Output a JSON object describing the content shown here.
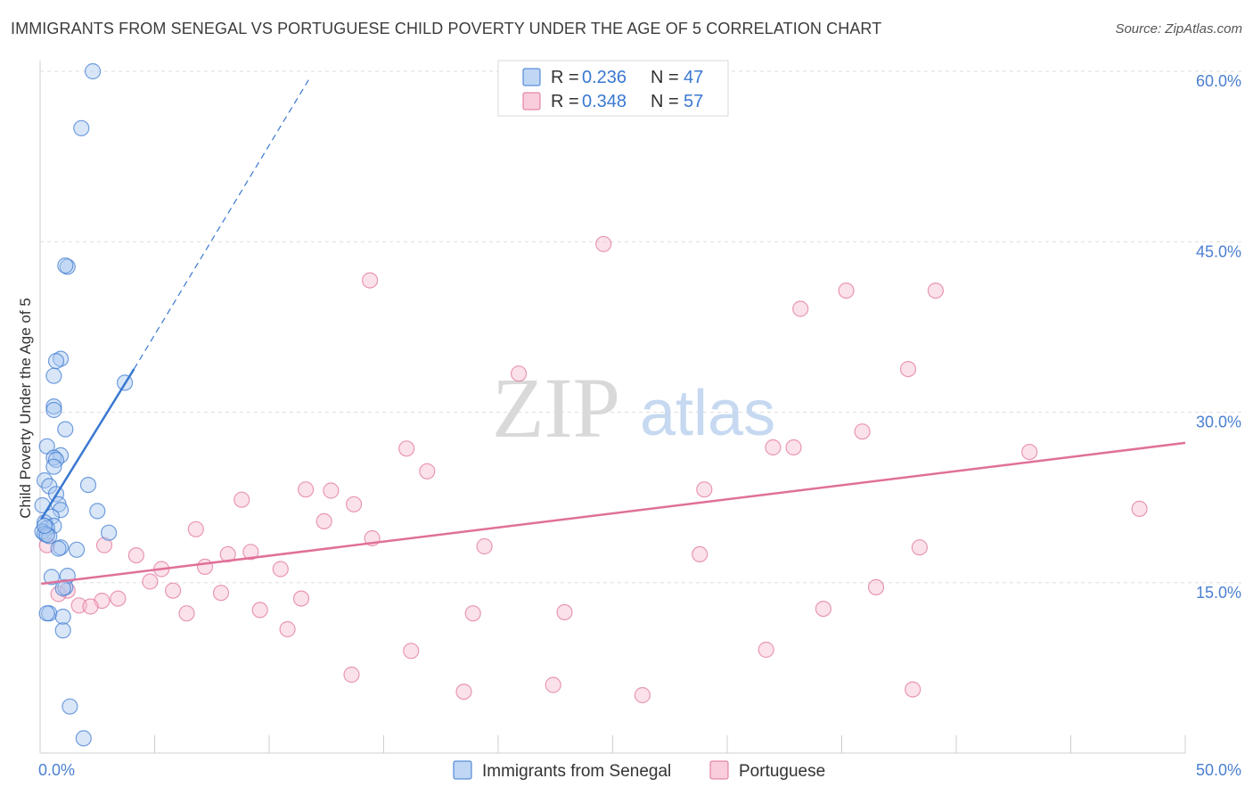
{
  "title": "IMMIGRANTS FROM SENEGAL VS PORTUGUESE CHILD POVERTY UNDER THE AGE OF 5 CORRELATION CHART",
  "source": "Source: ZipAtlas.com",
  "watermark": {
    "zip": "ZIP",
    "atlas": "atlas"
  },
  "colors": {
    "blue": "#3a78d0",
    "blue_fill": "#a9c8f0",
    "pink": "#e07099",
    "pink_fill": "#f7bcd0",
    "grid": "#dedede",
    "axis_label": "#4a7fd0"
  },
  "legend": {
    "rows": [
      {
        "r_label": "R = ",
        "r_value": "0.236",
        "n_label": "N = ",
        "n_value": "47"
      },
      {
        "r_label": "R = ",
        "r_value": "0.348",
        "n_label": "N = ",
        "n_value": "57"
      }
    ]
  },
  "chart_data": {
    "type": "scatter",
    "title": "IMMIGRANTS FROM SENEGAL VS PORTUGUESE CHILD POVERTY UNDER THE AGE OF 5 CORRELATION CHART",
    "xlabel": "",
    "ylabel": "Child Poverty Under the Age of 5",
    "xlim": [
      0,
      50
    ],
    "ylim": [
      0,
      60
    ],
    "x_tick_labels": [
      "0.0%",
      "50.0%"
    ],
    "y_ticks": [
      15,
      30,
      45,
      60
    ],
    "y_tick_labels": [
      "15.0%",
      "30.0%",
      "45.0%",
      "60.0%"
    ],
    "grid": true,
    "legend_position": "top-center",
    "series": [
      {
        "name": "Immigrants from Senegal",
        "color": "#3a78d0",
        "R": 0.236,
        "N": 47,
        "trend": {
          "x0": 0.05,
          "y0": 20.6,
          "x1": 4.1,
          "y1": 33.8,
          "x_dash_end": 11.8,
          "y_dash_end": 59.5
        },
        "points": [
          [
            2.3,
            60.0
          ],
          [
            1.8,
            55.0
          ],
          [
            1.2,
            42.8
          ],
          [
            1.1,
            42.9
          ],
          [
            0.9,
            34.7
          ],
          [
            0.7,
            34.5
          ],
          [
            0.6,
            33.2
          ],
          [
            3.7,
            32.6
          ],
          [
            0.6,
            30.5
          ],
          [
            0.6,
            30.2
          ],
          [
            1.1,
            28.5
          ],
          [
            0.3,
            27.0
          ],
          [
            0.9,
            26.2
          ],
          [
            0.6,
            26.0
          ],
          [
            0.7,
            25.8
          ],
          [
            0.6,
            25.2
          ],
          [
            0.2,
            24.0
          ],
          [
            2.1,
            23.6
          ],
          [
            0.4,
            23.5
          ],
          [
            0.7,
            22.8
          ],
          [
            0.1,
            21.8
          ],
          [
            0.8,
            21.9
          ],
          [
            0.9,
            21.4
          ],
          [
            2.5,
            21.3
          ],
          [
            0.5,
            20.8
          ],
          [
            0.2,
            20.3
          ],
          [
            0.6,
            20.0
          ],
          [
            0.3,
            19.8
          ],
          [
            0.1,
            19.5
          ],
          [
            0.2,
            19.3
          ],
          [
            3.0,
            19.4
          ],
          [
            0.4,
            19.1
          ],
          [
            0.3,
            19.2
          ],
          [
            0.9,
            18.1
          ],
          [
            0.8,
            18.0
          ],
          [
            1.6,
            17.9
          ],
          [
            1.2,
            15.6
          ],
          [
            0.5,
            15.5
          ],
          [
            1.1,
            14.6
          ],
          [
            1.0,
            14.5
          ],
          [
            0.4,
            12.3
          ],
          [
            0.3,
            12.3
          ],
          [
            1.0,
            12.0
          ],
          [
            1.0,
            10.8
          ],
          [
            1.3,
            4.1
          ],
          [
            1.9,
            1.3
          ],
          [
            0.2,
            20.0
          ]
        ]
      },
      {
        "name": "Portuguese",
        "color": "#e07099",
        "R": 0.348,
        "N": 57,
        "trend": {
          "x0": 0.05,
          "y0": 14.9,
          "x1": 50.0,
          "y1": 27.3
        },
        "points": [
          [
            24.6,
            44.8
          ],
          [
            14.4,
            41.6
          ],
          [
            35.2,
            40.7
          ],
          [
            39.1,
            40.7
          ],
          [
            33.2,
            39.1
          ],
          [
            37.9,
            33.8
          ],
          [
            20.9,
            33.4
          ],
          [
            35.9,
            28.3
          ],
          [
            16.0,
            26.8
          ],
          [
            32.0,
            26.9
          ],
          [
            32.9,
            26.9
          ],
          [
            43.2,
            26.5
          ],
          [
            16.9,
            24.8
          ],
          [
            11.6,
            23.2
          ],
          [
            12.7,
            23.1
          ],
          [
            29.0,
            23.2
          ],
          [
            8.8,
            22.3
          ],
          [
            13.7,
            21.9
          ],
          [
            48.0,
            21.5
          ],
          [
            12.4,
            20.4
          ],
          [
            6.8,
            19.7
          ],
          [
            14.5,
            18.9
          ],
          [
            19.4,
            18.2
          ],
          [
            38.4,
            18.1
          ],
          [
            2.8,
            18.3
          ],
          [
            0.3,
            18.3
          ],
          [
            4.2,
            17.4
          ],
          [
            8.2,
            17.5
          ],
          [
            9.2,
            17.7
          ],
          [
            28.8,
            17.5
          ],
          [
            5.3,
            16.2
          ],
          [
            7.2,
            16.4
          ],
          [
            10.5,
            16.2
          ],
          [
            4.8,
            15.1
          ],
          [
            36.5,
            14.6
          ],
          [
            1.2,
            14.3
          ],
          [
            5.8,
            14.3
          ],
          [
            7.9,
            14.1
          ],
          [
            0.8,
            14.0
          ],
          [
            3.4,
            13.6
          ],
          [
            2.7,
            13.4
          ],
          [
            11.4,
            13.6
          ],
          [
            1.7,
            13.0
          ],
          [
            2.2,
            12.9
          ],
          [
            9.6,
            12.6
          ],
          [
            34.2,
            12.7
          ],
          [
            6.4,
            12.3
          ],
          [
            18.9,
            12.3
          ],
          [
            22.9,
            12.4
          ],
          [
            10.8,
            10.9
          ],
          [
            16.2,
            9.0
          ],
          [
            31.7,
            9.1
          ],
          [
            13.6,
            6.9
          ],
          [
            22.4,
            6.0
          ],
          [
            18.5,
            5.4
          ],
          [
            38.1,
            5.6
          ],
          [
            26.3,
            5.1
          ]
        ]
      }
    ]
  }
}
